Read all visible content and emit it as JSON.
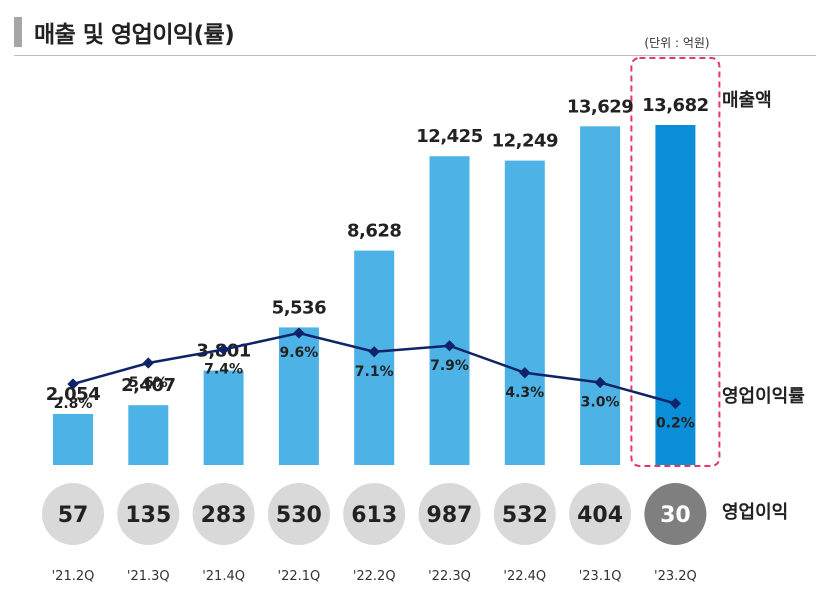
{
  "header": {
    "title": "매출 및 영업이익(률)",
    "unit": "(단위 : 억원)"
  },
  "labels": {
    "revenue": "매출액",
    "margin": "영업이익률",
    "op_income": "영업이익"
  },
  "colors": {
    "bar": "#4db3e6",
    "bar_highlight": "#0a8ed8",
    "line": "#0f2468",
    "circle": "#d9d9d9",
    "circle_highlight": "#7f7f7f",
    "highlight_box": "#e6366a"
  },
  "chart_data": {
    "type": "bar",
    "categories": [
      "'21.2Q",
      "'21.3Q",
      "'21.4Q",
      "'22.1Q",
      "'22.2Q",
      "'22.3Q",
      "'22.4Q",
      "'23.1Q",
      "'23.2Q"
    ],
    "series": [
      {
        "name": "매출액",
        "type": "bar",
        "values": [
          2054,
          2407,
          3801,
          5536,
          8628,
          12425,
          12249,
          13629,
          13682
        ],
        "labels": [
          "2,054",
          "2,407",
          "3,801",
          "5,536",
          "8,628",
          "12,425",
          "12,249",
          "13,629",
          "13,682"
        ]
      },
      {
        "name": "영업이익률",
        "type": "line",
        "values": [
          2.8,
          5.6,
          7.4,
          9.6,
          7.1,
          7.9,
          4.3,
          3.0,
          0.2
        ],
        "labels": [
          "2.8%",
          "5.6%",
          "7.4%",
          "9.6%",
          "7.1%",
          "7.9%",
          "4.3%",
          "3.0%",
          "0.2%"
        ]
      },
      {
        "name": "영업이익",
        "type": "table",
        "values": [
          57,
          135,
          283,
          530,
          613,
          987,
          532,
          404,
          30
        ]
      }
    ],
    "highlight_index": 8,
    "ylim": [
      0,
      15000
    ],
    "grid": false,
    "legend": "right"
  }
}
